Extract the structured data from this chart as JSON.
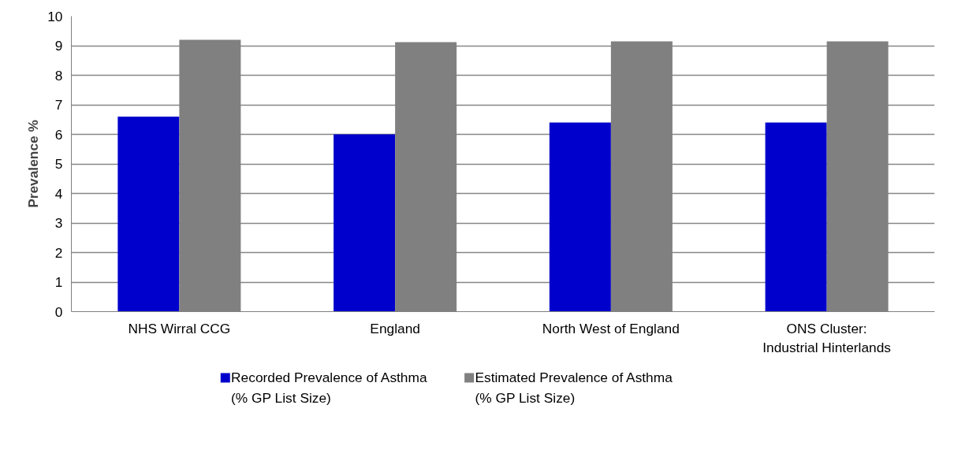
{
  "chart_data": {
    "type": "bar",
    "ylabel": "Prevalence %",
    "categories": [
      "NHS Wirral CCG",
      "England",
      "North West of England",
      "ONS Cluster:\nIndustrial Hinterlands"
    ],
    "series": [
      {
        "name": "Recorded Prevalence of Asthma\n(% GP List Size)",
        "color": "#0000cc",
        "values": [
          6.6,
          6.0,
          6.4,
          6.4
        ]
      },
      {
        "name": "Estimated Prevalence of Asthma\n(% GP List Size)",
        "color": "#808080",
        "values": [
          9.2,
          9.12,
          9.15,
          9.15
        ]
      }
    ],
    "ylim": [
      0,
      10
    ],
    "yticks": [
      0,
      1,
      2,
      3,
      4,
      5,
      6,
      7,
      8,
      9,
      10
    ],
    "grid": "y",
    "legend": "bottom"
  }
}
